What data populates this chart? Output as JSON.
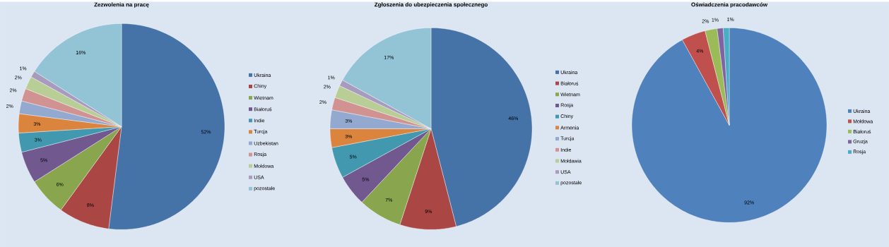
{
  "chart_data": [
    {
      "type": "pie",
      "title": "Zezwolenia na pracę",
      "legend": "right",
      "categories": [
        "Ukraina",
        "Chiny",
        "Wietnam",
        "Białoruś",
        "Indie",
        "Turcja",
        "Uzbekistan",
        "Rosja",
        "Mołdowa",
        "USA",
        "pozostałe"
      ],
      "values": [
        52,
        8,
        6,
        5,
        3,
        3,
        2,
        2,
        2,
        1,
        16
      ],
      "value_labels": [
        "52%",
        "8%",
        "6%",
        "5%",
        "3%",
        "3%",
        "2%",
        "2%",
        "2%",
        "1%",
        "16%"
      ],
      "colors": [
        "#4572a7",
        "#aa4643",
        "#89a54e",
        "#71588f",
        "#4198af",
        "#db843d",
        "#93a9cf",
        "#d19392",
        "#b9cd96",
        "#a99bbd",
        "#93c4d6"
      ]
    },
    {
      "type": "pie",
      "title": "Zgłoszenia do ubezpieczenia społecznego",
      "legend": "right",
      "categories": [
        "Ukraina",
        "Białoruś",
        "Wietnam",
        "Rosja",
        "Chiny",
        "Armenia",
        "Turcja",
        "Indie",
        "Mołdawia",
        "USA",
        "pozostałe"
      ],
      "values": [
        46,
        9,
        7,
        5,
        5,
        3,
        3,
        2,
        2,
        1,
        17
      ],
      "value_labels": [
        "46%",
        "9%",
        "7%",
        "5%",
        "5%",
        "3%",
        "3%",
        "2%",
        "2%",
        "1%",
        "17%"
      ],
      "colors": [
        "#4572a7",
        "#aa4643",
        "#89a54e",
        "#71588f",
        "#4198af",
        "#db843d",
        "#93a9cf",
        "#d19392",
        "#b9cd96",
        "#a99bbd",
        "#93c4d6"
      ]
    },
    {
      "type": "pie",
      "title": "Oświadczenia pracodawców",
      "legend": "right",
      "categories": [
        "Ukraina",
        "Mołdowa",
        "Białoruś",
        "Gruzja",
        "Rosja"
      ],
      "values": [
        92,
        4,
        2,
        1,
        1
      ],
      "value_labels": [
        "92%",
        "4%",
        "2%",
        "1%",
        "1%"
      ],
      "colors": [
        "#4f81bd",
        "#c0504d",
        "#9bbb59",
        "#8064a2",
        "#4bacc6"
      ]
    }
  ]
}
